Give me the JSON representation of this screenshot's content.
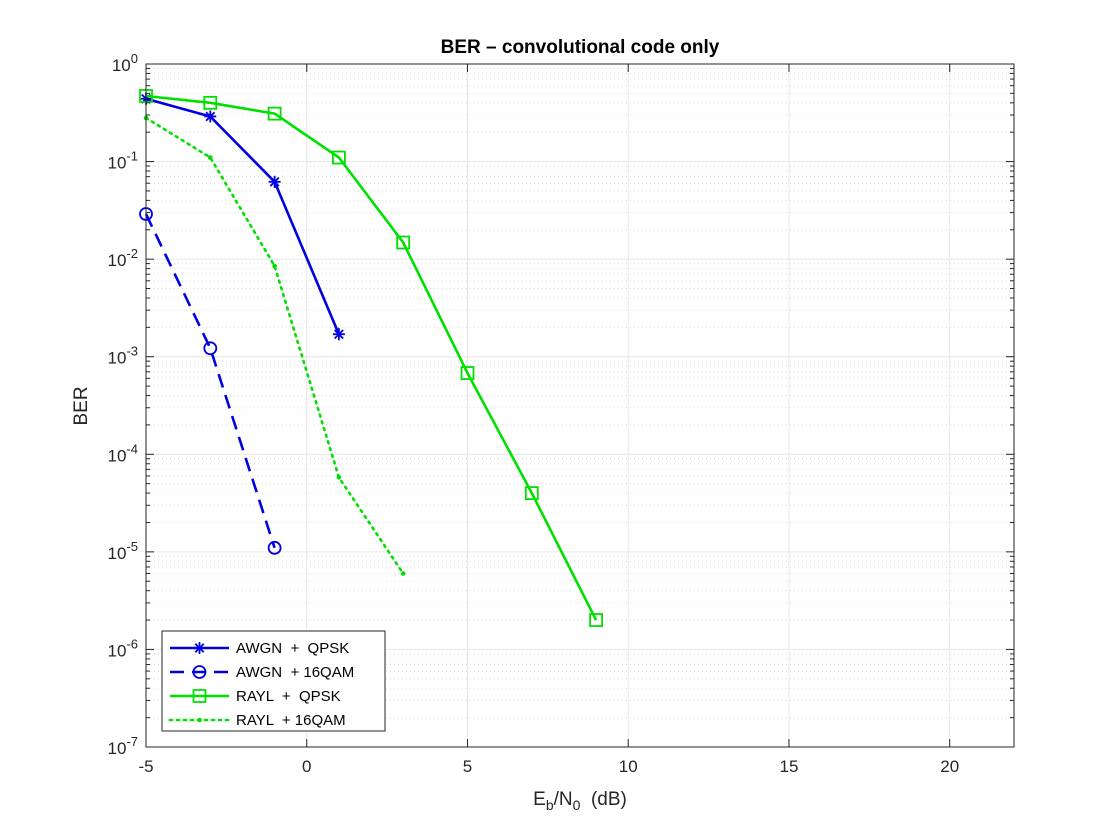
{
  "chart_data": {
    "type": "line",
    "title": "BER – convolutional code only",
    "xlabel": {
      "base": "E",
      "sub1": "b",
      "mid": "/N",
      "sub2": "0",
      "tail": "  (dB)"
    },
    "ylabel": "BER",
    "xlim": [
      -5,
      22
    ],
    "ylim": [
      1e-07,
      1
    ],
    "yscale": "log",
    "grid": true,
    "minor_grid": true,
    "legend_position": "bottom-left",
    "x_ticks": [
      -5,
      0,
      5,
      10,
      15,
      20
    ],
    "x_tick_labels": [
      "-5",
      "0",
      "5",
      "10",
      "15",
      "20"
    ],
    "y_ticks": [
      {
        "exp": 0,
        "base": "10",
        "sup": "0"
      },
      {
        "exp": -1,
        "base": "10",
        "sup": "-1"
      },
      {
        "exp": -2,
        "base": "10",
        "sup": "-2"
      },
      {
        "exp": -3,
        "base": "10",
        "sup": "-3"
      },
      {
        "exp": -4,
        "base": "10",
        "sup": "-4"
      },
      {
        "exp": -5,
        "base": "10",
        "sup": "-5"
      },
      {
        "exp": -6,
        "base": "10",
        "sup": "-6"
      },
      {
        "exp": -7,
        "base": "10",
        "sup": "-7"
      }
    ],
    "series": [
      {
        "name": "AWGN  +  QPSK",
        "color": "#0000e0",
        "line": "solid",
        "marker": "asterisk",
        "x": [
          -5,
          -3,
          -1,
          1
        ],
        "y": [
          0.44,
          0.29,
          0.062,
          0.0017
        ]
      },
      {
        "name": "AWGN  + 16QAM",
        "color": "#0000e0",
        "line": "dashed",
        "marker": "circle",
        "x": [
          -5,
          -3,
          -1
        ],
        "y": [
          0.029,
          0.00122,
          1.1e-05
        ]
      },
      {
        "name": "RAYL  +  QPSK",
        "color": "#00e000",
        "line": "solid",
        "marker": "square",
        "x": [
          -5,
          -3,
          -1,
          1,
          3,
          5,
          7,
          9
        ],
        "y": [
          0.47,
          0.4,
          0.31,
          0.11,
          0.0148,
          0.00068,
          4e-05,
          2e-06
        ]
      },
      {
        "name": "RAYL  + 16QAM",
        "color": "#00e000",
        "line": "dotted",
        "marker": "point",
        "x": [
          -5,
          -3,
          -1,
          1,
          3
        ],
        "y": [
          0.28,
          0.11,
          0.0085,
          5.8e-05,
          6e-06
        ]
      }
    ]
  }
}
